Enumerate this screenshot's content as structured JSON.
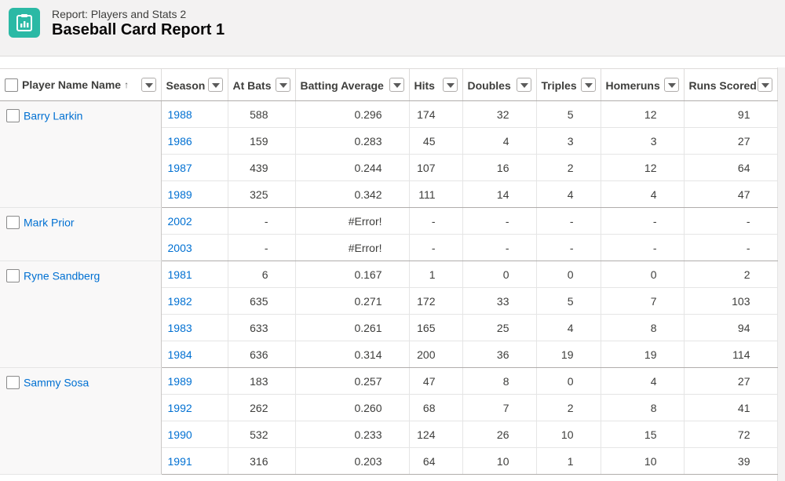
{
  "header": {
    "subtitle": "Report: Players and Stats 2",
    "title": "Baseball Card Report 1",
    "icon": "report-icon",
    "accent": "#2bb9a5"
  },
  "columns": [
    {
      "key": "player",
      "label": "Player Name Name",
      "sort": "ascending"
    },
    {
      "key": "season",
      "label": "Season"
    },
    {
      "key": "at_bats",
      "label": "At Bats"
    },
    {
      "key": "avg",
      "label": "Batting Average"
    },
    {
      "key": "hits",
      "label": "Hits"
    },
    {
      "key": "doubles",
      "label": "Doubles"
    },
    {
      "key": "triples",
      "label": "Triples"
    },
    {
      "key": "homeruns",
      "label": "Homeruns"
    },
    {
      "key": "runs",
      "label": "Runs Scored"
    }
  ],
  "sort_indicator": "↑",
  "groups": [
    {
      "player": "Barry Larkin",
      "rows": [
        {
          "season": "1988",
          "at_bats": "588",
          "avg": "0.296",
          "hits": "174",
          "doubles": "32",
          "triples": "5",
          "homeruns": "12",
          "runs": "91"
        },
        {
          "season": "1986",
          "at_bats": "159",
          "avg": "0.283",
          "hits": "45",
          "doubles": "4",
          "triples": "3",
          "homeruns": "3",
          "runs": "27"
        },
        {
          "season": "1987",
          "at_bats": "439",
          "avg": "0.244",
          "hits": "107",
          "doubles": "16",
          "triples": "2",
          "homeruns": "12",
          "runs": "64"
        },
        {
          "season": "1989",
          "at_bats": "325",
          "avg": "0.342",
          "hits": "111",
          "doubles": "14",
          "triples": "4",
          "homeruns": "4",
          "runs": "47"
        }
      ]
    },
    {
      "player": "Mark Prior",
      "rows": [
        {
          "season": "2002",
          "at_bats": "-",
          "avg": "#Error!",
          "hits": "-",
          "doubles": "-",
          "triples": "-",
          "homeruns": "-",
          "runs": "-"
        },
        {
          "season": "2003",
          "at_bats": "-",
          "avg": "#Error!",
          "hits": "-",
          "doubles": "-",
          "triples": "-",
          "homeruns": "-",
          "runs": "-"
        }
      ]
    },
    {
      "player": "Ryne Sandberg",
      "rows": [
        {
          "season": "1981",
          "at_bats": "6",
          "avg": "0.167",
          "hits": "1",
          "doubles": "0",
          "triples": "0",
          "homeruns": "0",
          "runs": "2"
        },
        {
          "season": "1982",
          "at_bats": "635",
          "avg": "0.271",
          "hits": "172",
          "doubles": "33",
          "triples": "5",
          "homeruns": "7",
          "runs": "103"
        },
        {
          "season": "1983",
          "at_bats": "633",
          "avg": "0.261",
          "hits": "165",
          "doubles": "25",
          "triples": "4",
          "homeruns": "8",
          "runs": "94"
        },
        {
          "season": "1984",
          "at_bats": "636",
          "avg": "0.314",
          "hits": "200",
          "doubles": "36",
          "triples": "19",
          "homeruns": "19",
          "runs": "114"
        }
      ]
    },
    {
      "player": "Sammy Sosa",
      "rows": [
        {
          "season": "1989",
          "at_bats": "183",
          "avg": "0.257",
          "hits": "47",
          "doubles": "8",
          "triples": "0",
          "homeruns": "4",
          "runs": "27"
        },
        {
          "season": "1992",
          "at_bats": "262",
          "avg": "0.260",
          "hits": "68",
          "doubles": "7",
          "triples": "2",
          "homeruns": "8",
          "runs": "41"
        },
        {
          "season": "1990",
          "at_bats": "532",
          "avg": "0.233",
          "hits": "124",
          "doubles": "26",
          "triples": "10",
          "homeruns": "15",
          "runs": "72"
        },
        {
          "season": "1991",
          "at_bats": "316",
          "avg": "0.203",
          "hits": "64",
          "doubles": "10",
          "triples": "1",
          "homeruns": "10",
          "runs": "39"
        }
      ]
    }
  ]
}
